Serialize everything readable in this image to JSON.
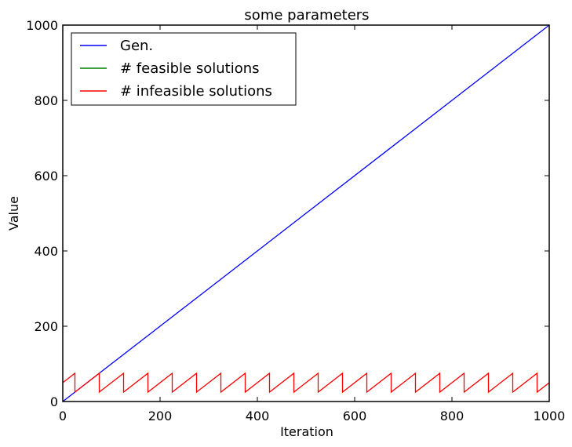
{
  "chart_data": {
    "type": "line",
    "title": "some parameters",
    "xlabel": "Iteration",
    "ylabel": "Value",
    "xlim": [
      0,
      1000
    ],
    "ylim": [
      0,
      1000
    ],
    "x_ticks": [
      0,
      200,
      400,
      600,
      800,
      1000
    ],
    "y_ticks": [
      0,
      200,
      400,
      600,
      800,
      1000
    ],
    "x_tick_labels": [
      "0",
      "200",
      "400",
      "600",
      "800",
      "1000"
    ],
    "y_tick_labels": [
      "0",
      "200",
      "400",
      "600",
      "800",
      "1000"
    ],
    "grid": false,
    "legend_position": "top-left",
    "series": [
      {
        "name": "Gen.",
        "color": "#0000ff",
        "x": [
          0,
          1000
        ],
        "y": [
          0,
          1000
        ]
      },
      {
        "name": "# feasible solutions",
        "color": "#008000",
        "x": [],
        "y": []
      },
      {
        "name": "# infeasible solutions",
        "color": "#ff0000",
        "x": [
          0,
          25,
          25,
          75,
          75,
          125,
          125,
          175,
          175,
          225,
          225,
          275,
          275,
          325,
          325,
          375,
          375,
          425,
          425,
          475,
          475,
          525,
          525,
          575,
          575,
          625,
          625,
          675,
          675,
          725,
          725,
          775,
          775,
          825,
          825,
          875,
          875,
          925,
          925,
          975,
          975,
          1000
        ],
        "y": [
          50,
          75,
          25,
          75,
          25,
          75,
          25,
          75,
          25,
          75,
          25,
          75,
          25,
          75,
          25,
          75,
          25,
          75,
          25,
          75,
          25,
          75,
          25,
          75,
          25,
          75,
          25,
          75,
          25,
          75,
          25,
          75,
          25,
          75,
          25,
          75,
          25,
          75,
          25,
          75,
          25,
          50
        ]
      }
    ]
  }
}
